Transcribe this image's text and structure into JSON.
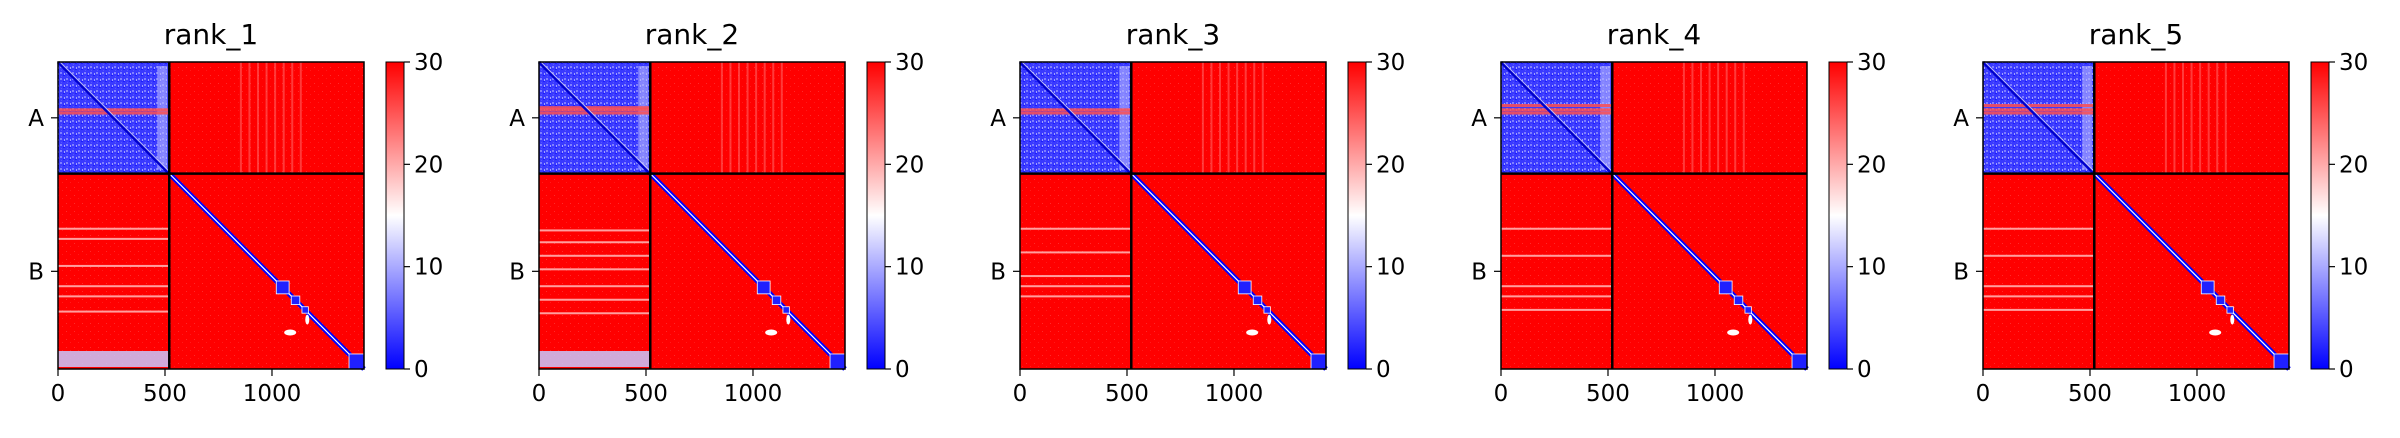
{
  "chart_data": {
    "type": "heatmap",
    "shared": {
      "x_ticks": [
        0,
        500,
        1000
      ],
      "x_range": [
        0,
        1430
      ],
      "y_range": [
        0,
        1430
      ],
      "chain_boundary": 520,
      "y_tick_labels": [
        "A",
        "B"
      ],
      "colorbar": {
        "min": 0,
        "max": 30,
        "ticks": [
          0,
          10,
          20,
          30
        ],
        "colormap": "bwr",
        "colors": [
          "#0000ff",
          "#ffffff",
          "#ff0000"
        ]
      },
      "grid": false,
      "legend": "none"
    },
    "panels": [
      {
        "title": "rank_1",
        "stripes_in_B_A": [
          160,
          190,
          270,
          330,
          360,
          405
        ],
        "pale_band_bottom": true,
        "A_A_red_rows": [
          225,
          240
        ]
      },
      {
        "title": "rank_2",
        "stripes_in_B_A": [
          165,
          200,
          240,
          280,
          330,
          370,
          410
        ],
        "pale_band_bottom": true,
        "A_A_red_rows": [
          215,
          225,
          240
        ]
      },
      {
        "title": "rank_3",
        "stripes_in_B_A": [
          160,
          230,
          300,
          330,
          360
        ],
        "pale_band_bottom": false,
        "A_A_red_rows": [
          225,
          240
        ]
      },
      {
        "title": "rank_4",
        "stripes_in_B_A": [
          160,
          240,
          330,
          360,
          400
        ],
        "pale_band_bottom": false,
        "A_A_red_rows": [
          205,
          225,
          240
        ]
      },
      {
        "title": "rank_5",
        "stripes_in_B_A": [
          160,
          240,
          330,
          360,
          400
        ],
        "pale_band_bottom": false,
        "A_A_red_rows": [
          205,
          225,
          240
        ]
      }
    ]
  }
}
